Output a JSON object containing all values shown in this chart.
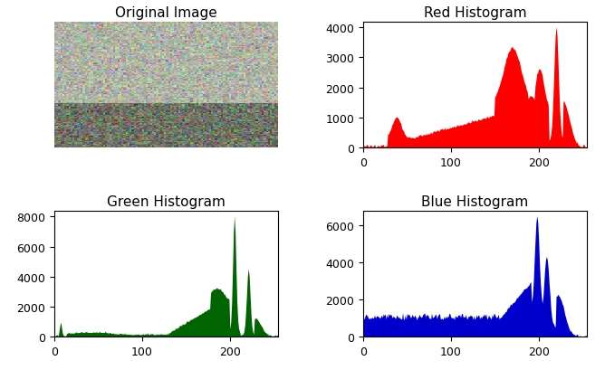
{
  "title_orig": "Original Image",
  "title_red": "Red Histogram",
  "title_green": "Green Histogram",
  "title_blue": "Blue Histogram",
  "red_color": "#ff0000",
  "green_color": "#006400",
  "blue_color": "#0000cd",
  "figsize": [
    6.68,
    4.1
  ],
  "dpi": 100,
  "img_xlim": [
    0,
    256
  ],
  "red_yticks": [
    0,
    1000,
    2000,
    3000,
    4000
  ],
  "red_ylim": [
    0,
    4200
  ],
  "green_yticks": [
    0,
    2000,
    4000,
    6000,
    8000
  ],
  "green_ylim": [
    0,
    8400
  ],
  "blue_yticks": [
    0,
    2000,
    4000,
    6000
  ],
  "blue_ylim": [
    0,
    6800
  ],
  "xticks": [
    0,
    100,
    200
  ]
}
